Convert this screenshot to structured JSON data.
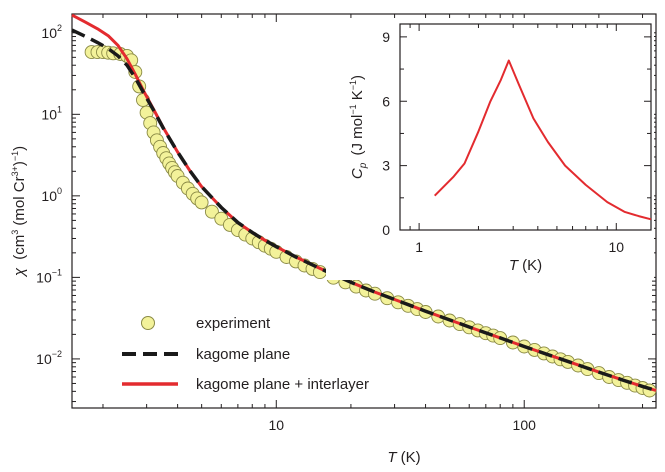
{
  "chart_data": [
    {
      "type": "scatter",
      "xscale": "log",
      "yscale": "log",
      "xlim": [
        1.5,
        340
      ],
      "ylim": [
        0.0025,
        170
      ],
      "xlabel_symbol": "T",
      "xlabel_unit": "(K)",
      "ylabel_symbol": "χ",
      "ylabel_unit": "(cm",
      "ylabel_unit_sup1": "3",
      "ylabel_unit_mid": " (mol Cr",
      "ylabel_unit_sup2": "3+",
      "ylabel_unit_end": ")",
      "ylabel_unit_sup3": "−1",
      "ylabel_unit_tail": ")",
      "x_ticks": [
        {
          "value": 10,
          "label": "10"
        },
        {
          "value": 100,
          "label": "100"
        }
      ],
      "y_ticks": [
        {
          "value": 0.01,
          "base": "10",
          "exp": "−2"
        },
        {
          "value": 0.1,
          "base": "10",
          "exp": "−1"
        },
        {
          "value": 1,
          "base": "10",
          "exp": "0"
        },
        {
          "value": 10,
          "base": "10",
          "exp": "1"
        },
        {
          "value": 100,
          "base": "10",
          "exp": "2"
        }
      ],
      "legend_position": "bottom-left",
      "series": [
        {
          "name": "experiment",
          "style": "markers",
          "color": "#f3f29a",
          "edge_color": "#8a8a45",
          "x": [
            1.8,
            1.9,
            2.0,
            2.1,
            2.2,
            2.35,
            2.5,
            2.6,
            2.7,
            2.8,
            2.9,
            3.0,
            3.1,
            3.2,
            3.3,
            3.4,
            3.5,
            3.6,
            3.7,
            3.8,
            3.9,
            4.0,
            4.2,
            4.4,
            4.6,
            4.8,
            5.0,
            5.5,
            6.0,
            6.5,
            7.0,
            7.5,
            8.0,
            8.5,
            9.0,
            9.5,
            10,
            11,
            12,
            13,
            14,
            15,
            17,
            19,
            21,
            23,
            25,
            28,
            31,
            34,
            37,
            40,
            45,
            50,
            55,
            60,
            65,
            70,
            75,
            80,
            90,
            100,
            110,
            120,
            130,
            140,
            150,
            165,
            180,
            200,
            220,
            240,
            260,
            280,
            300,
            320
          ],
          "y": [
            58,
            58,
            58,
            57,
            56,
            55,
            52,
            46,
            33,
            22,
            15,
            10.5,
            7.8,
            6.0,
            4.8,
            4.0,
            3.35,
            2.9,
            2.5,
            2.2,
            1.95,
            1.75,
            1.45,
            1.23,
            1.06,
            0.93,
            0.83,
            0.64,
            0.525,
            0.44,
            0.38,
            0.335,
            0.3,
            0.27,
            0.245,
            0.225,
            0.206,
            0.178,
            0.157,
            0.14,
            0.127,
            0.116,
            0.099,
            0.087,
            0.077,
            0.069,
            0.063,
            0.0555,
            0.0495,
            0.0448,
            0.0408,
            0.0376,
            0.0331,
            0.0296,
            0.0267,
            0.0244,
            0.0224,
            0.0207,
            0.0193,
            0.018,
            0.0159,
            0.0142,
            0.0129,
            0.0117,
            0.0107,
            0.0099,
            0.0092,
            0.0083,
            0.0075,
            0.0067,
            0.006,
            0.0055,
            0.0051,
            0.0047,
            0.0044,
            0.0041
          ]
        },
        {
          "name": "kagome plane",
          "style": "dashed",
          "color": "#1a1a1a",
          "x": [
            1.5,
            1.7,
            1.9,
            2.1,
            2.3,
            2.5,
            2.7,
            2.9,
            3.2,
            3.5,
            4.0,
            4.5,
            5.0,
            6.0,
            7.0,
            8.0,
            9.0,
            10,
            12,
            15,
            20,
            25,
            30,
            40,
            50,
            60,
            80,
            100,
            130,
            160,
            200,
            250,
            300,
            340
          ],
          "y": [
            108,
            90,
            76,
            64,
            52,
            40,
            28,
            19,
            11.2,
            6.8,
            3.45,
            2.0,
            1.3,
            0.72,
            0.47,
            0.355,
            0.285,
            0.238,
            0.178,
            0.129,
            0.087,
            0.066,
            0.0535,
            0.0385,
            0.0301,
            0.0246,
            0.0181,
            0.0142,
            0.0108,
            0.0087,
            0.0069,
            0.0055,
            0.0046,
            0.0041
          ]
        },
        {
          "name": "kagome plane + interlayer",
          "style": "solid",
          "color": "#e32b2f",
          "x": [
            1.5,
            1.7,
            1.9,
            2.1,
            2.3,
            2.5,
            2.7,
            2.9,
            3.2,
            3.5,
            4.0,
            4.5,
            5.0,
            6.0,
            7.0,
            8.0,
            9.0,
            10,
            12,
            15,
            20,
            25,
            30,
            40,
            50,
            60,
            80,
            100,
            130,
            160,
            200,
            250,
            300,
            340
          ],
          "y": [
            165,
            135,
            112,
            92,
            70,
            48,
            31,
            20,
            11.5,
            6.9,
            3.45,
            2.0,
            1.3,
            0.72,
            0.47,
            0.355,
            0.285,
            0.238,
            0.178,
            0.129,
            0.087,
            0.066,
            0.0535,
            0.0385,
            0.0301,
            0.0246,
            0.0181,
            0.0142,
            0.0108,
            0.0087,
            0.0069,
            0.0055,
            0.0046,
            0.0041
          ]
        }
      ]
    },
    {
      "type": "line",
      "xscale": "log",
      "yscale": "linear",
      "xlim": [
        0.8,
        15
      ],
      "ylim": [
        0,
        9.6
      ],
      "xlabel_symbol": "T",
      "xlabel_unit": "(K)",
      "ylabel_symbol": "C",
      "ylabel_sub": "p",
      "ylabel_unit": "(J mol",
      "ylabel_unit_sup1": "−1",
      "ylabel_unit_mid": " K",
      "ylabel_unit_sup2": "−1",
      "ylabel_unit_end": ")",
      "x_ticks": [
        {
          "value": 1,
          "label": "1"
        },
        {
          "value": 10,
          "label": "10"
        }
      ],
      "y_ticks": [
        {
          "value": 0,
          "label": "0"
        },
        {
          "value": 3,
          "label": "3"
        },
        {
          "value": 6,
          "label": "6"
        },
        {
          "value": 9,
          "label": "9"
        }
      ],
      "series": [
        {
          "style": "solid",
          "color": "#e32b2f",
          "x": [
            1.2,
            1.5,
            1.7,
            2.0,
            2.3,
            2.6,
            2.85,
            3.2,
            3.8,
            4.5,
            5.5,
            7.0,
            9.0,
            11.0,
            13.0,
            15.0
          ],
          "y": [
            1.6,
            2.5,
            3.1,
            4.6,
            6.0,
            7.0,
            7.9,
            6.8,
            5.2,
            4.1,
            3.0,
            2.1,
            1.3,
            0.85,
            0.65,
            0.5
          ]
        }
      ]
    }
  ]
}
